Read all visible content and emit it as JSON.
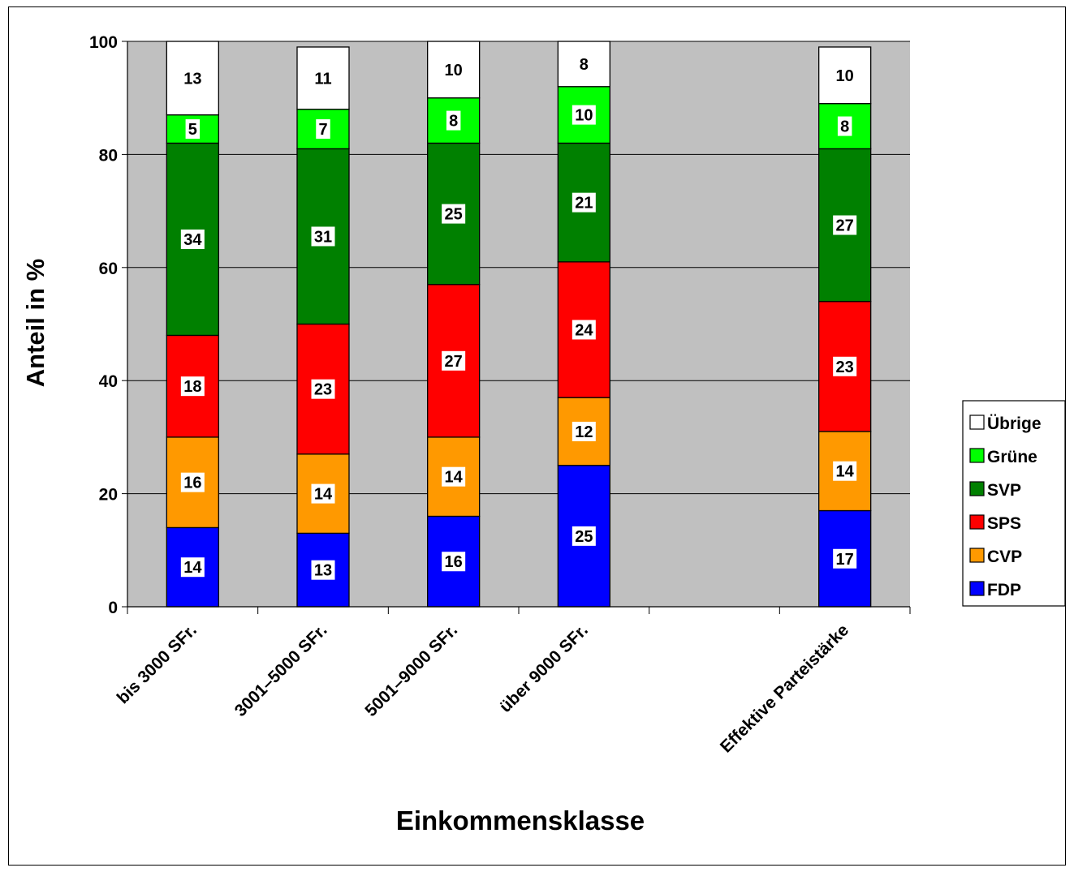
{
  "chart_data": {
    "type": "bar",
    "stacked": true,
    "title": "",
    "xlabel": "Einkommensklasse",
    "ylabel": "Anteil in %",
    "ylim": [
      0,
      100
    ],
    "yticks": [
      0,
      20,
      40,
      60,
      80,
      100
    ],
    "grid": true,
    "legend_position": "right",
    "plot_background": "#c0c0c0",
    "slots": [
      "bis 3000 SFr.",
      "3001–5000 SFr.",
      "5001–9000 SFr.",
      "über 9000 SFr.",
      "",
      "Effektive Parteistärke"
    ],
    "categories": [
      "bis 3000 SFr.",
      "3001–5000 SFr.",
      "5001–9000 SFr.",
      "über 9000 SFr.",
      "Effektive Parteistärke"
    ],
    "series": [
      {
        "name": "FDP",
        "color": "#0000ff",
        "values": [
          14,
          13,
          16,
          25,
          17
        ],
        "labels": [
          "14",
          "13",
          "16",
          "25",
          "17"
        ]
      },
      {
        "name": "CVP",
        "color": "#ff9900",
        "values": [
          16,
          14,
          14,
          12,
          14
        ],
        "labels": [
          "16",
          "14",
          "14",
          "12",
          "14"
        ]
      },
      {
        "name": "SPS",
        "color": "#ff0000",
        "values": [
          18,
          23,
          27,
          24,
          23
        ],
        "labels": [
          "18",
          "23",
          "27",
          "24",
          "23"
        ]
      },
      {
        "name": "SVP",
        "color": "#008000",
        "values": [
          34,
          31,
          25,
          21,
          27
        ],
        "labels": [
          "34",
          "31",
          "25",
          "21",
          "27"
        ]
      },
      {
        "name": "Grüne",
        "color": "#00ff00",
        "values": [
          5,
          7,
          8,
          10,
          8
        ],
        "labels": [
          "5",
          "7",
          "8",
          "10",
          "8"
        ]
      },
      {
        "name": "Übrige",
        "color": "#ffffff",
        "values": [
          13,
          11,
          10,
          8,
          10
        ],
        "labels": [
          "13",
          "11",
          "10",
          "8",
          "10"
        ]
      }
    ]
  }
}
